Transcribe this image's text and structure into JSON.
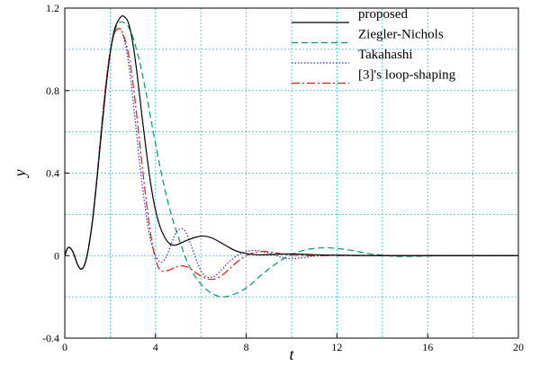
{
  "chart_data": {
    "type": "line",
    "title": "",
    "xlabel": "t",
    "ylabel": "y",
    "xlim": [
      0,
      20
    ],
    "ylim": [
      -0.4,
      1.2
    ],
    "xticks": [
      0,
      4,
      8,
      12,
      16,
      20
    ],
    "yticks": [
      -0.4,
      0,
      0.4,
      0.8,
      1.2
    ],
    "x_tick_labels": [
      "0",
      "4",
      "8",
      "12",
      "16",
      "20"
    ],
    "y_tick_labels": [
      "-0.4",
      "0",
      "0.4",
      "0.8",
      "1.2"
    ],
    "grid": true,
    "legend_position": "top-right",
    "series": [
      {
        "name": "proposed",
        "color": "#000000",
        "dash": "solid",
        "points": [
          [
            0,
            0
          ],
          [
            0.15,
            0.04
          ],
          [
            0.35,
            0.02
          ],
          [
            0.55,
            -0.04
          ],
          [
            0.7,
            -0.065
          ],
          [
            0.85,
            -0.05
          ],
          [
            1.0,
            0.01
          ],
          [
            1.2,
            0.15
          ],
          [
            1.4,
            0.35
          ],
          [
            1.6,
            0.58
          ],
          [
            1.8,
            0.8
          ],
          [
            2.0,
            0.98
          ],
          [
            2.2,
            1.1
          ],
          [
            2.45,
            1.155
          ],
          [
            2.6,
            1.16
          ],
          [
            2.8,
            1.13
          ],
          [
            3.0,
            1.03
          ],
          [
            3.2,
            0.87
          ],
          [
            3.4,
            0.68
          ],
          [
            3.6,
            0.5
          ],
          [
            3.8,
            0.34
          ],
          [
            4.0,
            0.22
          ],
          [
            4.2,
            0.14
          ],
          [
            4.4,
            0.09
          ],
          [
            4.6,
            0.06
          ],
          [
            4.8,
            0.05
          ],
          [
            5.0,
            0.055
          ],
          [
            5.4,
            0.075
          ],
          [
            5.8,
            0.09
          ],
          [
            6.1,
            0.095
          ],
          [
            6.5,
            0.085
          ],
          [
            7.0,
            0.055
          ],
          [
            7.5,
            0.025
          ],
          [
            8.0,
            0.01
          ],
          [
            8.5,
            0.004
          ],
          [
            9.0,
            0.005
          ],
          [
            10,
            0.008
          ],
          [
            11,
            0.004
          ],
          [
            12,
            0.002
          ],
          [
            14,
            0.0
          ],
          [
            16,
            0.0
          ],
          [
            18,
            0.0
          ],
          [
            20,
            0.0
          ]
        ]
      },
      {
        "name": "Ziegler-Nichols",
        "color": "#009966",
        "dash": "dash",
        "points": [
          [
            0,
            0
          ],
          [
            0.15,
            0.04
          ],
          [
            0.35,
            0.02
          ],
          [
            0.55,
            -0.04
          ],
          [
            0.7,
            -0.065
          ],
          [
            0.85,
            -0.05
          ],
          [
            1.0,
            0.01
          ],
          [
            1.2,
            0.15
          ],
          [
            1.4,
            0.35
          ],
          [
            1.6,
            0.58
          ],
          [
            1.8,
            0.8
          ],
          [
            2.0,
            0.98
          ],
          [
            2.2,
            1.09
          ],
          [
            2.4,
            1.13
          ],
          [
            2.6,
            1.13
          ],
          [
            2.8,
            1.11
          ],
          [
            3.0,
            1.06
          ],
          [
            3.3,
            0.94
          ],
          [
            3.6,
            0.78
          ],
          [
            3.9,
            0.6
          ],
          [
            4.2,
            0.43
          ],
          [
            4.5,
            0.28
          ],
          [
            4.8,
            0.16
          ],
          [
            5.1,
            0.06
          ],
          [
            5.4,
            -0.03
          ],
          [
            5.8,
            -0.11
          ],
          [
            6.2,
            -0.16
          ],
          [
            6.6,
            -0.19
          ],
          [
            7.0,
            -0.2
          ],
          [
            7.4,
            -0.19
          ],
          [
            7.8,
            -0.17
          ],
          [
            8.2,
            -0.14
          ],
          [
            8.6,
            -0.1
          ],
          [
            9.0,
            -0.065
          ],
          [
            9.5,
            -0.025
          ],
          [
            10,
            0.005
          ],
          [
            10.5,
            0.025
          ],
          [
            11,
            0.035
          ],
          [
            11.5,
            0.038
          ],
          [
            12,
            0.035
          ],
          [
            12.5,
            0.028
          ],
          [
            13,
            0.018
          ],
          [
            13.5,
            0.008
          ],
          [
            14,
            0.002
          ],
          [
            14.5,
            -0.003
          ],
          [
            15,
            -0.004
          ],
          [
            16,
            -0.002
          ],
          [
            17,
            0.0
          ],
          [
            18,
            0.0
          ],
          [
            20,
            0.0
          ]
        ]
      },
      {
        "name": "Takahashi",
        "color": "#2b2bd6",
        "dash": "dot",
        "points": [
          [
            0,
            0
          ],
          [
            0.15,
            0.04
          ],
          [
            0.35,
            0.02
          ],
          [
            0.55,
            -0.04
          ],
          [
            0.7,
            -0.065
          ],
          [
            0.85,
            -0.05
          ],
          [
            1.0,
            0.01
          ],
          [
            1.2,
            0.15
          ],
          [
            1.4,
            0.36
          ],
          [
            1.6,
            0.6
          ],
          [
            1.8,
            0.82
          ],
          [
            2.0,
            0.99
          ],
          [
            2.2,
            1.08
          ],
          [
            2.35,
            1.1
          ],
          [
            2.5,
            1.09
          ],
          [
            2.7,
            1.01
          ],
          [
            2.9,
            0.86
          ],
          [
            3.1,
            0.66
          ],
          [
            3.3,
            0.45
          ],
          [
            3.5,
            0.27
          ],
          [
            3.7,
            0.12
          ],
          [
            3.9,
            0.03
          ],
          [
            4.1,
            -0.02
          ],
          [
            4.3,
            -0.03
          ],
          [
            4.5,
            0.0
          ],
          [
            4.7,
            0.06
          ],
          [
            4.9,
            0.11
          ],
          [
            5.1,
            0.13
          ],
          [
            5.3,
            0.12
          ],
          [
            5.5,
            0.07
          ],
          [
            5.7,
            0.01
          ],
          [
            5.9,
            -0.05
          ],
          [
            6.1,
            -0.09
          ],
          [
            6.3,
            -0.105
          ],
          [
            6.6,
            -0.1
          ],
          [
            6.9,
            -0.07
          ],
          [
            7.2,
            -0.035
          ],
          [
            7.6,
            0.0
          ],
          [
            8.0,
            0.02
          ],
          [
            8.4,
            0.025
          ],
          [
            8.8,
            0.018
          ],
          [
            9.2,
            0.005
          ],
          [
            9.6,
            -0.01
          ],
          [
            10.0,
            -0.015
          ],
          [
            10.5,
            -0.01
          ],
          [
            11,
            -0.003
          ],
          [
            12,
            0.002
          ],
          [
            13,
            0.0
          ],
          [
            14,
            0.0
          ],
          [
            16,
            0.0
          ],
          [
            18,
            0.0
          ],
          [
            20,
            0.0
          ]
        ]
      },
      {
        "name": "[3]'s loop-shaping",
        "color": "#ee1111",
        "dash": "dashdot",
        "points": [
          [
            0,
            0
          ],
          [
            0.15,
            0.04
          ],
          [
            0.35,
            0.02
          ],
          [
            0.55,
            -0.04
          ],
          [
            0.7,
            -0.065
          ],
          [
            0.85,
            -0.05
          ],
          [
            1.0,
            0.01
          ],
          [
            1.2,
            0.15
          ],
          [
            1.4,
            0.36
          ],
          [
            1.6,
            0.6
          ],
          [
            1.8,
            0.82
          ],
          [
            2.0,
            0.99
          ],
          [
            2.2,
            1.08
          ],
          [
            2.35,
            1.1
          ],
          [
            2.5,
            1.09
          ],
          [
            2.7,
            1.03
          ],
          [
            2.9,
            0.92
          ],
          [
            3.1,
            0.75
          ],
          [
            3.3,
            0.55
          ],
          [
            3.5,
            0.35
          ],
          [
            3.7,
            0.17
          ],
          [
            3.9,
            0.03
          ],
          [
            4.1,
            -0.05
          ],
          [
            4.3,
            -0.075
          ],
          [
            4.6,
            -0.07
          ],
          [
            4.9,
            -0.055
          ],
          [
            5.2,
            -0.05
          ],
          [
            5.5,
            -0.06
          ],
          [
            5.8,
            -0.085
          ],
          [
            6.1,
            -0.105
          ],
          [
            6.4,
            -0.115
          ],
          [
            6.7,
            -0.11
          ],
          [
            7.0,
            -0.09
          ],
          [
            7.3,
            -0.06
          ],
          [
            7.6,
            -0.03
          ],
          [
            8.0,
            0.0
          ],
          [
            8.4,
            0.015
          ],
          [
            8.8,
            0.02
          ],
          [
            9.2,
            0.015
          ],
          [
            9.6,
            0.008
          ],
          [
            10.0,
            0.002
          ],
          [
            11,
            0.0
          ],
          [
            12,
            0.0
          ],
          [
            14,
            0.0
          ],
          [
            16,
            0.0
          ],
          [
            18,
            0.0
          ],
          [
            20,
            0.0
          ]
        ]
      }
    ]
  }
}
